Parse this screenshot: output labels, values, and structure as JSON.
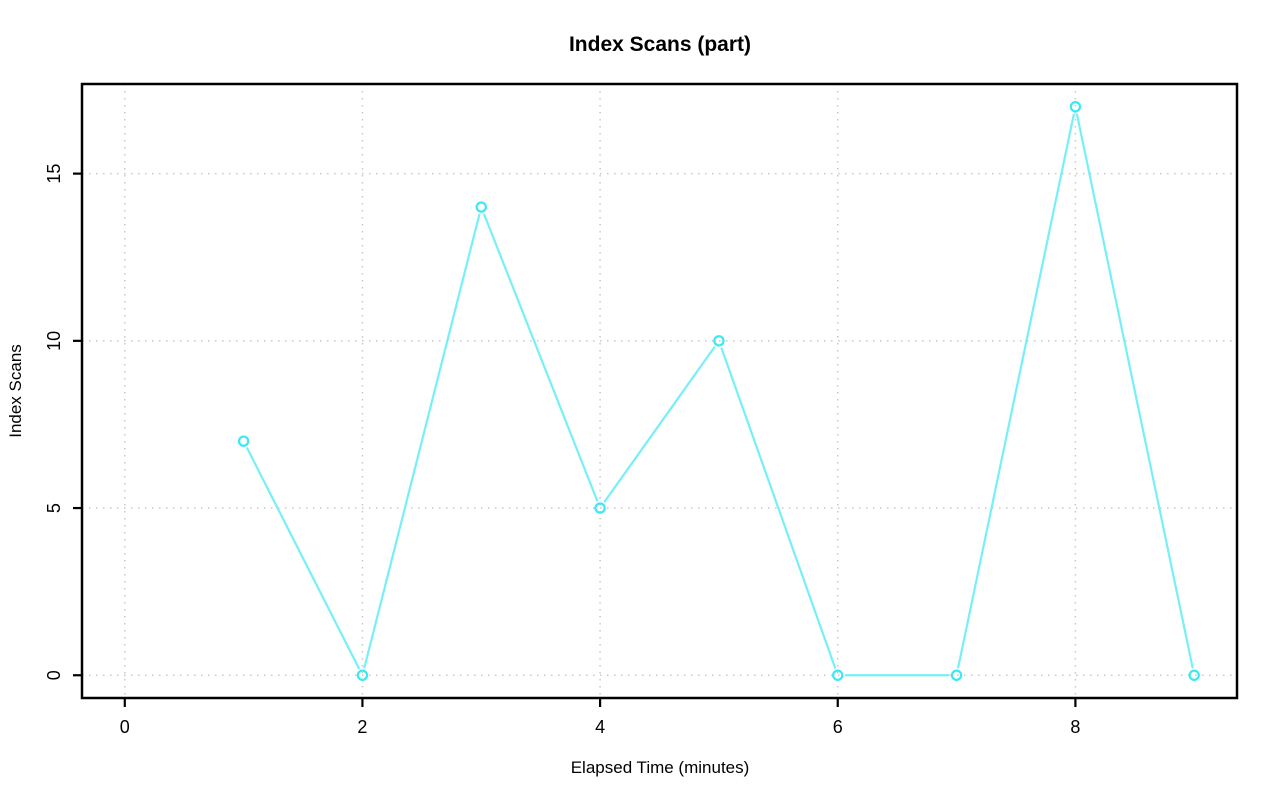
{
  "chart_data": {
    "type": "line",
    "title": "Index Scans (part)",
    "xlabel": "Elapsed Time (minutes)",
    "ylabel": "Index Scans",
    "series": [
      {
        "name": "Index Scans",
        "x": [
          1,
          2,
          3,
          4,
          5,
          6,
          7,
          8,
          9
        ],
        "y": [
          7,
          0,
          14,
          5,
          10,
          0,
          0,
          17,
          0
        ]
      }
    ],
    "x_ticks": [
      0,
      2,
      4,
      6,
      8
    ],
    "y_ticks": [
      0,
      5,
      10,
      15
    ],
    "xlim": [
      -0.36,
      9.36
    ],
    "ylim": [
      -0.68,
      17.68
    ],
    "grid": "dotted-at-ticks",
    "legend_position": "none",
    "marker": "open-circle",
    "line_type": "segments-with-point-gaps",
    "colors": {
      "line": "#76EFF7",
      "marker": "#3AE9F3",
      "grid": "#C8C8C8",
      "axis": "#000000",
      "text": "#000000",
      "background": "#FFFFFF"
    }
  }
}
